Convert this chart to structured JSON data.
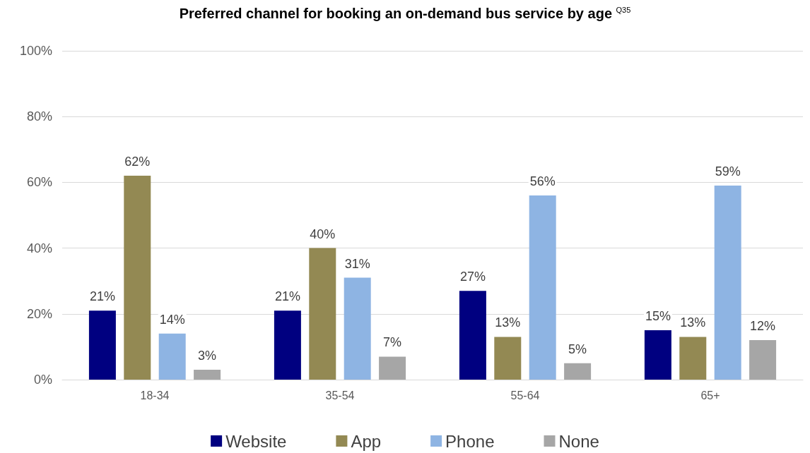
{
  "chart_data": {
    "type": "bar",
    "title": "Preferred channel for booking an on-demand bus service by age $^{Q35}$",
    "categories": [
      "18-34",
      "35-54",
      "55-64",
      "65+"
    ],
    "series": [
      {
        "name": "Website",
        "color": "#000080",
        "values": [
          21,
          21,
          27,
          15
        ],
        "value_labels": [
          "21%",
          "21%",
          "27%",
          "15%"
        ]
      },
      {
        "name": "App",
        "color": "#938953",
        "values": [
          62,
          40,
          13,
          13
        ],
        "value_labels": [
          "62%",
          "40%",
          "13%",
          "13%"
        ]
      },
      {
        "name": "Phone",
        "color": "#8eb4e3",
        "values": [
          14,
          31,
          56,
          59
        ],
        "value_labels": [
          "14%",
          "31%",
          "56%",
          "59%"
        ]
      },
      {
        "name": "None",
        "color": "#a6a6a6",
        "values": [
          3,
          7,
          5,
          12
        ],
        "value_labels": [
          "3%",
          "7%",
          "5%",
          "12%"
        ]
      }
    ],
    "ylim": [
      0,
      100
    ],
    "yticks": [
      {
        "value": 0,
        "label": "0%"
      },
      {
        "value": 20,
        "label": "20%"
      },
      {
        "value": 40,
        "label": "40%"
      },
      {
        "value": 60,
        "label": "60%"
      },
      {
        "value": 80,
        "label": "80%"
      },
      {
        "value": 100,
        "label": "100%"
      }
    ],
    "grid": "y",
    "legend": "bottom"
  }
}
